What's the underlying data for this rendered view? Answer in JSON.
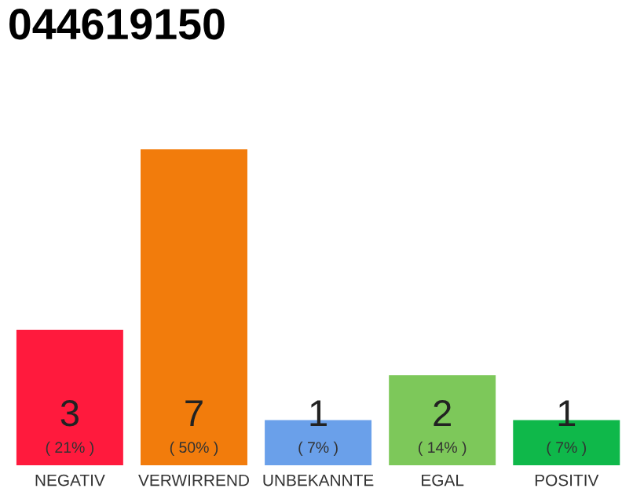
{
  "chart_data": {
    "type": "bar",
    "title": "044619150",
    "categories": [
      "NEGATIV",
      "VERWIRREND",
      "UNBEKANNTE",
      "EGAL",
      "POSITIV"
    ],
    "values": [
      3,
      7,
      1,
      2,
      1
    ],
    "colors": [
      "#ff1a3d",
      "#f27c0c",
      "#6aa0ea",
      "#7dc85a",
      "#0fb84a"
    ],
    "data_labels": true,
    "annotations": [
      "( 21% )",
      "( 50% )",
      "( 7% )",
      "( 14% )",
      "( 7% )"
    ],
    "grid": false,
    "legend": false
  }
}
